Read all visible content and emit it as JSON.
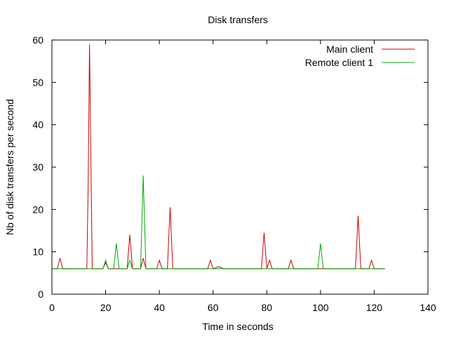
{
  "chart_data": {
    "type": "line",
    "title": "Disk transfers",
    "xlabel": "Time in seconds",
    "ylabel": "Nb of disk transfers per second",
    "xlim": [
      0,
      140
    ],
    "ylim": [
      0,
      60
    ],
    "xticks": [
      0,
      20,
      40,
      60,
      80,
      100,
      120,
      140
    ],
    "yticks": [
      0,
      10,
      20,
      30,
      40,
      50,
      60
    ],
    "grid": false,
    "legend_position": "top-right",
    "series": [
      {
        "name": "Main client",
        "color": "#cc0000",
        "points": [
          [
            0,
            6
          ],
          [
            1,
            6
          ],
          [
            2,
            6
          ],
          [
            3,
            8.5
          ],
          [
            4,
            6
          ],
          [
            5,
            6
          ],
          [
            6,
            6
          ],
          [
            7,
            6
          ],
          [
            8,
            6
          ],
          [
            9,
            6
          ],
          [
            10,
            6
          ],
          [
            11,
            6
          ],
          [
            12,
            6
          ],
          [
            13,
            6
          ],
          [
            13.5,
            26
          ],
          [
            14,
            59
          ],
          [
            14.5,
            33
          ],
          [
            15,
            6
          ],
          [
            16,
            6
          ],
          [
            17,
            6
          ],
          [
            18,
            6
          ],
          [
            19,
            6
          ],
          [
            20,
            7.5
          ],
          [
            21,
            6
          ],
          [
            22,
            6
          ],
          [
            23,
            6
          ],
          [
            24,
            6
          ],
          [
            25,
            6
          ],
          [
            26,
            6
          ],
          [
            27,
            6
          ],
          [
            28,
            6
          ],
          [
            29,
            14
          ],
          [
            30,
            6
          ],
          [
            31,
            6
          ],
          [
            32,
            6
          ],
          [
            33,
            6
          ],
          [
            34,
            8.5
          ],
          [
            35,
            6
          ],
          [
            36,
            6
          ],
          [
            37,
            6
          ],
          [
            38,
            6
          ],
          [
            39,
            6
          ],
          [
            40,
            8
          ],
          [
            41,
            6
          ],
          [
            42,
            6
          ],
          [
            43,
            6
          ],
          [
            44,
            20.5
          ],
          [
            45,
            6
          ],
          [
            46,
            6
          ],
          [
            47,
            6
          ],
          [
            48,
            6
          ],
          [
            50,
            6
          ],
          [
            52,
            6
          ],
          [
            55,
            6
          ],
          [
            58,
            6
          ],
          [
            59,
            8
          ],
          [
            60,
            6
          ],
          [
            62,
            6.5
          ],
          [
            64,
            6
          ],
          [
            66,
            6
          ],
          [
            68,
            6
          ],
          [
            70,
            6
          ],
          [
            72,
            6
          ],
          [
            75,
            6
          ],
          [
            78,
            6
          ],
          [
            79,
            14.5
          ],
          [
            80,
            6
          ],
          [
            81,
            8
          ],
          [
            82,
            6
          ],
          [
            84,
            6
          ],
          [
            86,
            6
          ],
          [
            88,
            6
          ],
          [
            89,
            8
          ],
          [
            90,
            6
          ],
          [
            92,
            6
          ],
          [
            95,
            6
          ],
          [
            98,
            6
          ],
          [
            100,
            6
          ],
          [
            102,
            6
          ],
          [
            105,
            6
          ],
          [
            108,
            6
          ],
          [
            110,
            6
          ],
          [
            112,
            6
          ],
          [
            113,
            6
          ],
          [
            114,
            18.5
          ],
          [
            115,
            6
          ],
          [
            116,
            6
          ],
          [
            118,
            6
          ],
          [
            119,
            8
          ],
          [
            120,
            6
          ],
          [
            122,
            6
          ],
          [
            124,
            6
          ]
        ]
      },
      {
        "name": "Remote client 1",
        "color": "#00aa00",
        "points": [
          [
            0,
            6
          ],
          [
            2,
            6
          ],
          [
            4,
            6
          ],
          [
            6,
            6
          ],
          [
            8,
            6
          ],
          [
            10,
            6
          ],
          [
            12,
            6
          ],
          [
            14,
            6
          ],
          [
            16,
            6
          ],
          [
            18,
            6
          ],
          [
            19,
            6
          ],
          [
            20,
            8
          ],
          [
            21,
            6
          ],
          [
            22,
            6
          ],
          [
            23,
            6
          ],
          [
            24,
            12
          ],
          [
            25,
            6
          ],
          [
            26,
            6
          ],
          [
            27,
            6
          ],
          [
            28,
            6
          ],
          [
            29,
            8
          ],
          [
            30,
            6
          ],
          [
            31,
            6
          ],
          [
            32,
            6
          ],
          [
            33,
            6
          ],
          [
            34,
            28
          ],
          [
            35,
            6
          ],
          [
            36,
            6
          ],
          [
            38,
            6
          ],
          [
            40,
            6
          ],
          [
            42,
            6
          ],
          [
            44,
            6
          ],
          [
            46,
            6
          ],
          [
            48,
            6
          ],
          [
            50,
            6
          ],
          [
            55,
            6
          ],
          [
            60,
            6
          ],
          [
            65,
            6
          ],
          [
            70,
            6
          ],
          [
            75,
            6
          ],
          [
            80,
            6
          ],
          [
            85,
            6
          ],
          [
            90,
            6
          ],
          [
            95,
            6
          ],
          [
            98,
            6
          ],
          [
            99,
            6
          ],
          [
            100,
            12
          ],
          [
            101,
            6
          ],
          [
            102,
            6
          ],
          [
            105,
            6
          ],
          [
            108,
            6
          ],
          [
            110,
            6
          ],
          [
            115,
            6
          ],
          [
            118,
            6
          ],
          [
            120,
            6
          ],
          [
            122,
            6
          ],
          [
            124,
            6
          ]
        ]
      }
    ]
  }
}
